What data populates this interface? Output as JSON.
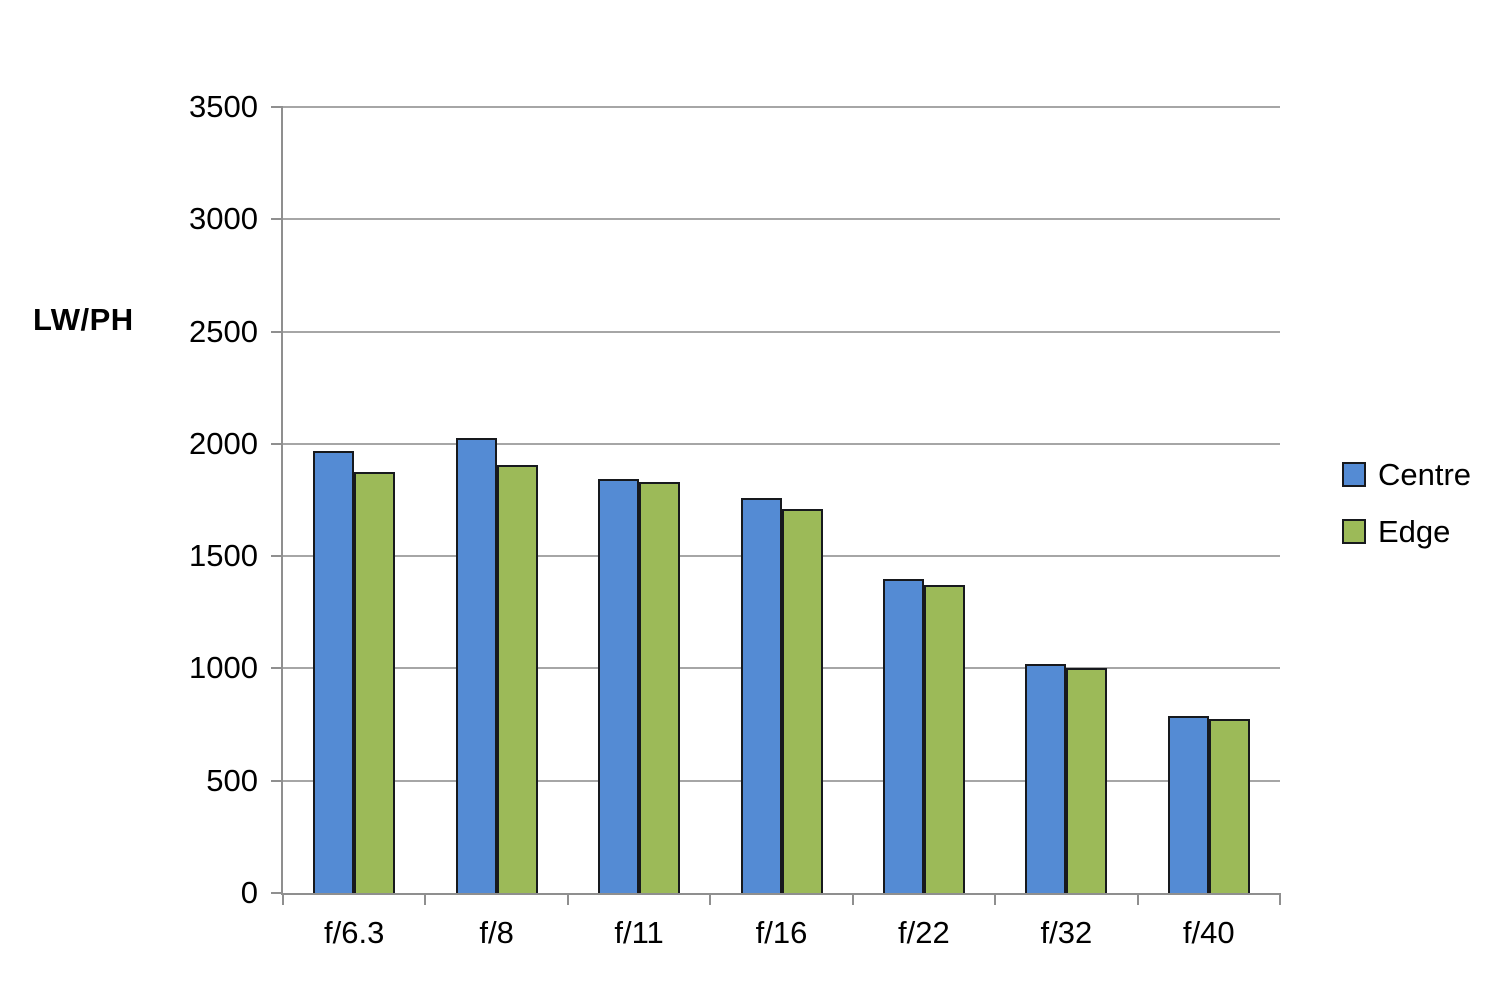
{
  "chart_data": {
    "type": "bar",
    "title": "",
    "ylabel": "LW/PH",
    "xlabel": "",
    "categories": [
      "f/6.3",
      "f/8",
      "f/11",
      "f/16",
      "f/22",
      "f/32",
      "f/40"
    ],
    "series": [
      {
        "name": "Centre",
        "color": "#548bd4",
        "values": [
          1970,
          2025,
          1845,
          1760,
          1400,
          1020,
          790
        ]
      },
      {
        "name": "Edge",
        "color": "#9cba58",
        "values": [
          1875,
          1905,
          1830,
          1710,
          1370,
          1000,
          775
        ]
      }
    ],
    "ylim": [
      0,
      3500
    ],
    "yticks": [
      0,
      500,
      1000,
      1500,
      2000,
      2500,
      3000,
      3500
    ],
    "grid": true,
    "legend_position": "right-middle"
  },
  "colors": {
    "background": "#ffffff",
    "bar_border": "#17191d",
    "gridline": "#a6a6a6",
    "axis": "#8f8f8f",
    "text": "#000000"
  }
}
